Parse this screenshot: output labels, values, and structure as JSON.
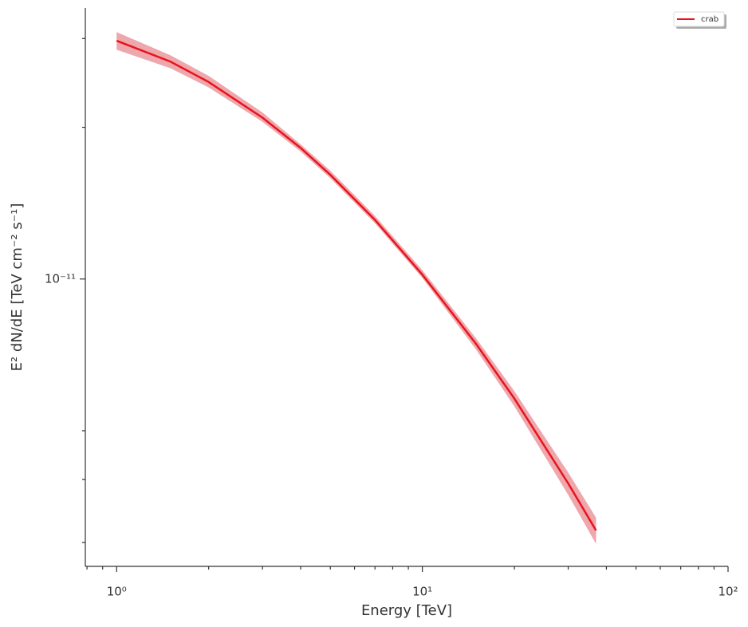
{
  "chart_data": {
    "type": "line",
    "xlabel": "Energy [TeV]",
    "ylabel": "E² dN/dE [TeV cm⁻² s⁻¹]",
    "xscale": "log",
    "yscale": "log",
    "xlim": [
      0.79,
      100
    ],
    "ylim": [
      2.69e-12,
      3.45e-11
    ],
    "xticks": [
      {
        "value": 1,
        "label": "10⁰"
      },
      {
        "value": 10,
        "label": "10¹"
      },
      {
        "value": 100,
        "label": "10²"
      }
    ],
    "yticks": [
      {
        "value": 1e-11,
        "label": "10⁻¹¹"
      }
    ],
    "xminorticks": [
      0.8,
      0.9,
      2,
      3,
      4,
      5,
      6,
      7,
      8,
      9,
      20,
      30,
      40,
      50,
      60,
      70,
      80,
      90
    ],
    "yminorticks": [
      3e-12,
      4e-12,
      5e-12,
      2e-11,
      3e-11
    ],
    "x": [
      1,
      1.5,
      2,
      3,
      4,
      5,
      7,
      10,
      15,
      20,
      30,
      37
    ],
    "series": [
      {
        "name": "crab",
        "color": "#e8141c",
        "band_color": "#e88a90",
        "values": [
          2.97e-11,
          2.7e-11,
          2.46e-11,
          2.09e-11,
          1.82e-11,
          1.61e-11,
          1.31e-11,
          1.02e-11,
          7.43e-12,
          5.79e-12,
          3.93e-12,
          3.17e-12
        ],
        "upper": [
          3.09e-11,
          2.78e-11,
          2.53e-11,
          2.14e-11,
          1.85e-11,
          1.64e-11,
          1.334e-11,
          1.041e-11,
          7.62e-12,
          5.99e-12,
          4.13e-12,
          3.36e-12
        ],
        "lower": [
          2.85e-11,
          2.62e-11,
          2.4e-11,
          2.05e-11,
          1.79e-11,
          1.585e-11,
          1.29e-11,
          1.005e-11,
          7.24e-12,
          5.59e-12,
          3.73e-12,
          2.98e-12
        ]
      }
    ],
    "legend": "upper right"
  }
}
